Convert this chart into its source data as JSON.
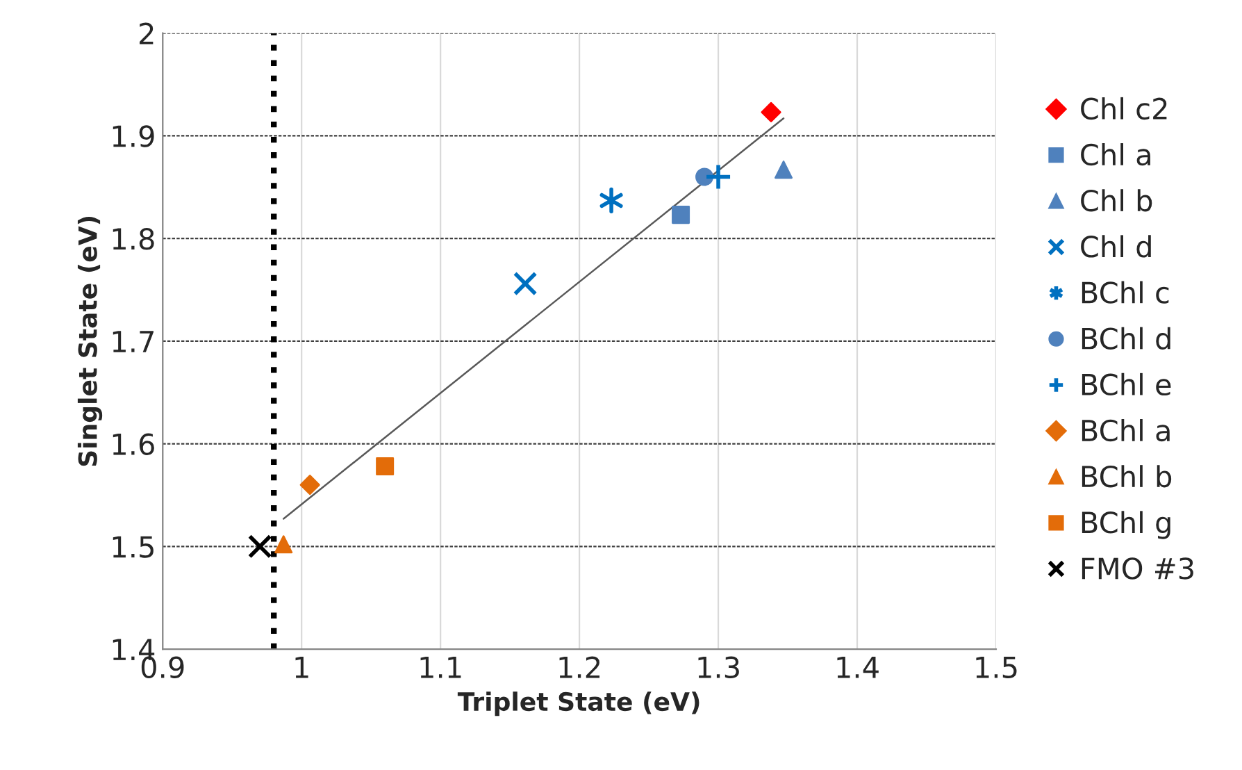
{
  "chart_data": {
    "type": "scatter",
    "xlabel": "Triplet State (eV)",
    "ylabel": "Singlet State (eV)",
    "xlim": [
      0.9,
      1.5
    ],
    "xticks": [
      0.9,
      1,
      1.1,
      1.2,
      1.3,
      1.4,
      1.5
    ],
    "ylim": [
      1.4,
      2
    ],
    "yticks": [
      1.4,
      1.5,
      1.6,
      1.7,
      1.8,
      1.9,
      2
    ],
    "grid": true,
    "legend": "right",
    "ref_lines": [
      {
        "axis": "x",
        "value": 0.98,
        "color": "#000000",
        "line_style": "dotted"
      }
    ],
    "series": [
      {
        "name": "Chl c2",
        "color": "#ff0000",
        "marker": "diamond",
        "x": [
          1.338
        ],
        "values": [
          1.923
        ]
      },
      {
        "name": "Chl a",
        "color": "#4f81bd",
        "marker": "square",
        "x": [
          1.273
        ],
        "values": [
          1.823
        ]
      },
      {
        "name": "Chl b",
        "color": "#4f81bd",
        "marker": "triangle",
        "x": [
          1.347
        ],
        "values": [
          1.867
        ]
      },
      {
        "name": "Chl d",
        "color": "#0070c0",
        "marker": "x",
        "x": [
          1.161
        ],
        "values": [
          1.756
        ]
      },
      {
        "name": "BChl c",
        "color": "#0070c0",
        "x": [
          1.223
        ],
        "values": [
          1.837
        ]
      },
      {
        "name": "BChl d",
        "color": "#4f81bd",
        "marker": "circle",
        "x": [
          1.29
        ],
        "values": [
          1.86
        ]
      },
      {
        "name": "BChl e",
        "color": "#0070c0",
        "marker": "cross",
        "x": [
          1.3
        ],
        "values": [
          1.86
        ]
      },
      {
        "name": "BChl a",
        "color": "#e36c09",
        "marker": "diamond",
        "x": [
          1.006
        ],
        "values": [
          1.56
        ]
      },
      {
        "name": "BChl b",
        "color": "#e36c09",
        "marker": "triangle",
        "x": [
          0.987
        ],
        "values": [
          1.502
        ]
      },
      {
        "name": "BChl g",
        "color": "#e36c09",
        "marker": "square",
        "x": [
          1.06
        ],
        "values": [
          1.578
        ]
      },
      {
        "name": "FMO #3",
        "color": "#000000",
        "marker": "x",
        "x": [
          0.97
        ],
        "values": [
          1.5
        ]
      },
      {
        "type": "line",
        "color": "#595959",
        "marker": "none",
        "x": [
          0.987,
          1.347
        ],
        "values": [
          1.527,
          1.917
        ]
      }
    ]
  }
}
